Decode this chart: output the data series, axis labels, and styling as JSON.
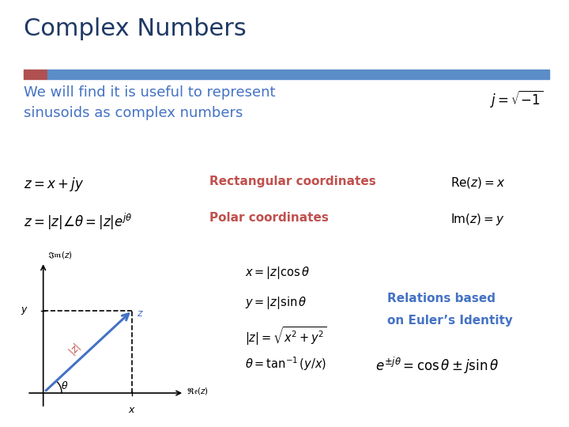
{
  "title": "Complex Numbers",
  "title_color": "#1F3864",
  "title_fontsize": 22,
  "subtitle": "We will find it is useful to represent\nsinusoids as complex numbers",
  "subtitle_color": "#4472C4",
  "subtitle_fontsize": 13,
  "bar_color_left": "#B05050",
  "bar_color_right": "#5B8DC8",
  "background_color": "#FFFFFF",
  "formula_j": "$j = \\sqrt{-1}$",
  "formula_rect_z": "$z = x + jy$",
  "formula_polar_z": "$z = |z|\\angle\\theta = |z|e^{j\\theta}$",
  "label_rect": "Rectangular coordinates",
  "label_polar": "Polar coordinates",
  "formula_rez": "$\\mathrm{Re}(z)= x$",
  "formula_imz": "$\\mathrm{Im}(z) = y$",
  "relations_text1": "Relations based",
  "relations_text2": "on Euler’s Identity",
  "formula_euler": "$e^{\\pm j\\theta} = \\cos\\theta \\pm j\\sin\\theta$",
  "plot_equations": [
    "$x = |z|\\cos\\theta$",
    "$y = |z|\\sin\\theta$",
    "$|z| = \\sqrt{x^2 + y^2}$",
    "$\\theta = \\tan^{-1}(y/x)$"
  ]
}
